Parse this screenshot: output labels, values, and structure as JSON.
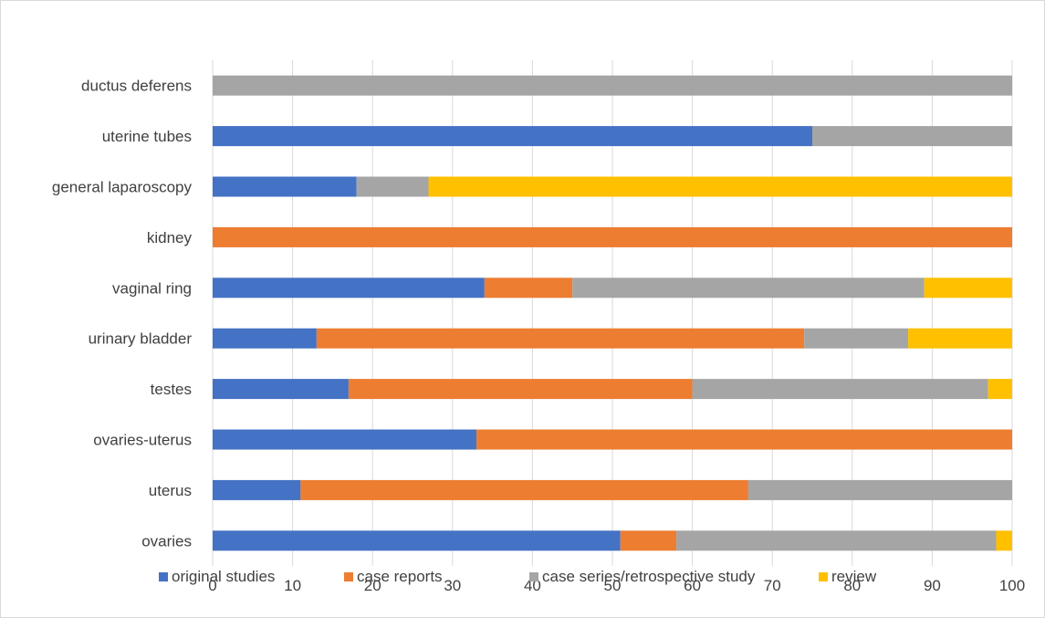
{
  "chart_data": {
    "type": "bar",
    "orientation": "horizontal",
    "stacked": true,
    "categories": [
      "ovaries",
      "uterus",
      "ovaries-uterus",
      "testes",
      "urinary bladder",
      "vaginal ring",
      "kidney",
      "general laparoscopy",
      "uterine tubes",
      "ductus deferens"
    ],
    "series": [
      {
        "name": "original studies",
        "color": "#4472C4",
        "values": [
          51,
          11,
          33,
          17,
          13,
          34,
          0,
          18,
          75,
          0
        ]
      },
      {
        "name": "case reports",
        "color": "#ED7D31",
        "values": [
          7,
          56,
          67,
          43,
          61,
          11,
          100,
          0,
          0,
          0
        ]
      },
      {
        "name": "case series/retrospective study",
        "color": "#A5A5A5",
        "values": [
          40,
          33,
          0,
          37,
          13,
          44,
          0,
          9,
          25,
          100
        ]
      },
      {
        "name": "review",
        "color": "#FFC000",
        "values": [
          2,
          0,
          0,
          3,
          13,
          11,
          0,
          73,
          0,
          0
        ]
      }
    ],
    "xlim": [
      0,
      100
    ],
    "xticks": [
      "0",
      "10",
      "20",
      "30",
      "40",
      "50",
      "60",
      "70",
      "80",
      "90",
      "100"
    ],
    "title": "",
    "xlabel": "",
    "ylabel": "",
    "grid": "vertical",
    "legend_position": "bottom"
  }
}
